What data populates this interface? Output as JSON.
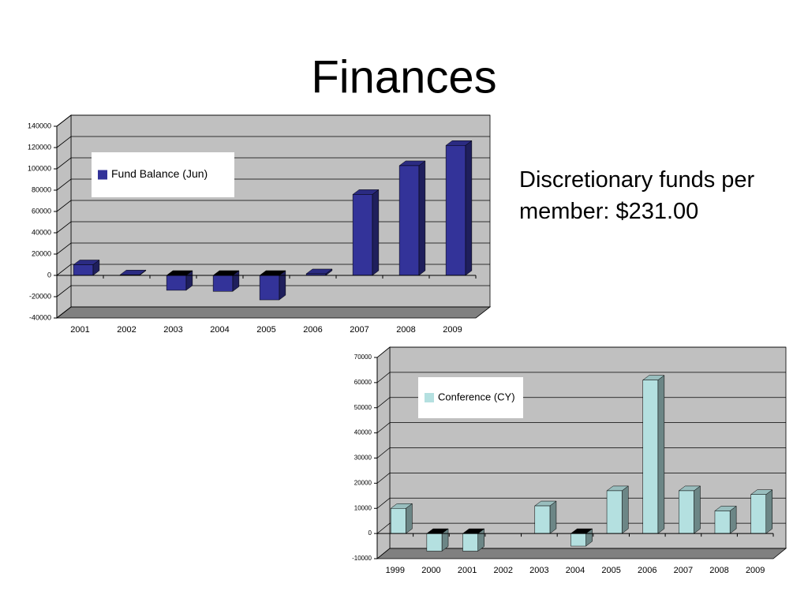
{
  "title": "Finances",
  "note": "Discretionary funds per member: $231.00",
  "chart_data": [
    {
      "type": "bar",
      "categories": [
        "2001",
        "2002",
        "2003",
        "2004",
        "2005",
        "2006",
        "2007",
        "2008",
        "2009"
      ],
      "series": [
        {
          "name": "Fund Balance (Jun)",
          "color": "#333399",
          "values": [
            10000,
            500,
            -14000,
            -15000,
            -23000,
            1500,
            76000,
            103000,
            122000
          ]
        }
      ],
      "ylim": [
        -40000,
        140000
      ],
      "yticks": [
        -40000,
        -20000,
        0,
        20000,
        40000,
        60000,
        80000,
        100000,
        120000,
        140000
      ],
      "grid": true
    },
    {
      "type": "bar",
      "categories": [
        "1999",
        "2000",
        "2001",
        "2002",
        "2003",
        "2004",
        "2005",
        "2006",
        "2007",
        "2008",
        "2009"
      ],
      "series": [
        {
          "name": "Conference (CY)",
          "color": "#b4e0e0",
          "values": [
            10000,
            -7000,
            -7000,
            null,
            11000,
            -5000,
            17000,
            61000,
            17000,
            9000,
            15500
          ]
        }
      ],
      "ylim": [
        -10000,
        70000
      ],
      "yticks": [
        -10000,
        0,
        10000,
        20000,
        30000,
        40000,
        50000,
        60000,
        70000
      ],
      "grid": true
    }
  ]
}
